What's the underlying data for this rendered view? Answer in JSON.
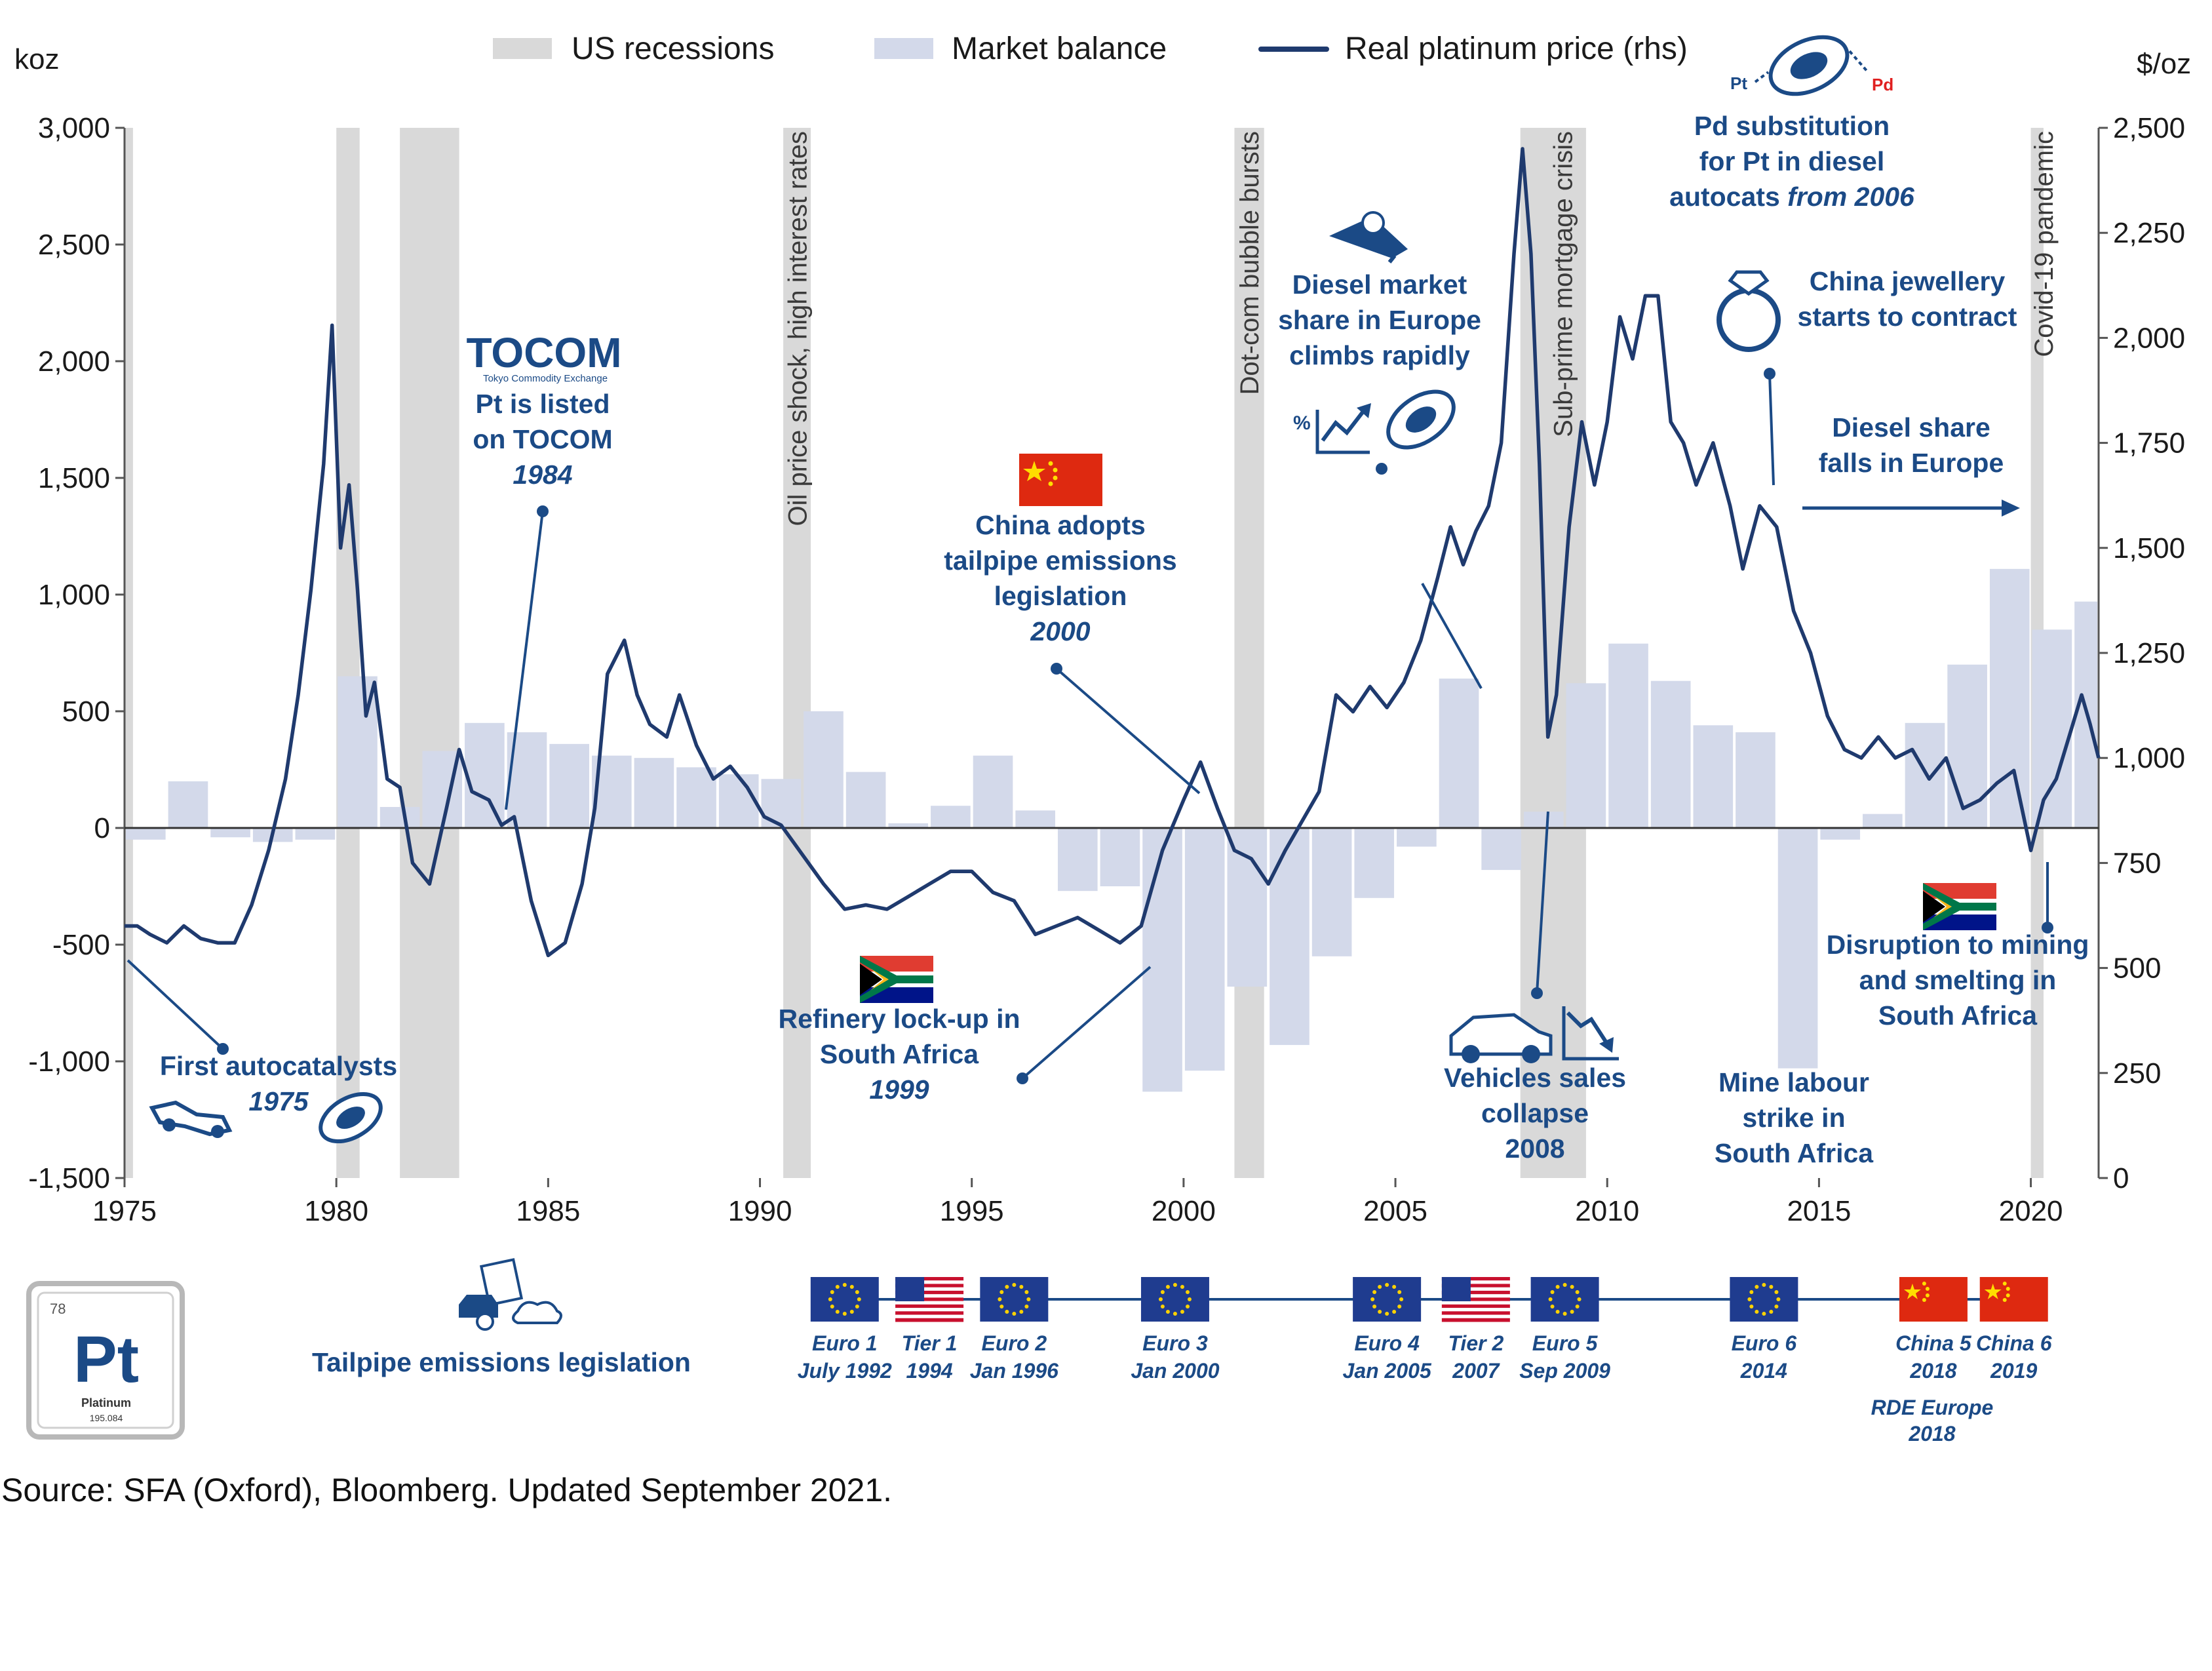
{
  "chart_data": {
    "type": "bar+line",
    "left_axis": {
      "unit": "koz",
      "ylim": [
        -1500,
        3000
      ],
      "ticks": [
        "3,000",
        "2,500",
        "2,000",
        "1,500",
        "1,000",
        "500",
        "0",
        "-500",
        "-1,000",
        "-1,500"
      ],
      "tick_values": [
        3000,
        2500,
        2000,
        1500,
        1000,
        500,
        0,
        -500,
        -1000,
        -1500
      ]
    },
    "right_axis": {
      "unit": "$/oz",
      "ylim": [
        0,
        2500
      ],
      "ticks": [
        "2,500",
        "2,250",
        "2,000",
        "1,750",
        "1,500",
        "1,250",
        "1,000",
        "750",
        "500",
        "250",
        "0"
      ],
      "tick_values": [
        2500,
        2250,
        2000,
        1750,
        1500,
        1250,
        1000,
        750,
        500,
        250,
        0
      ]
    },
    "x_axis": {
      "xlim": [
        1975,
        2021.6
      ],
      "ticks": [
        "1975",
        "1980",
        "1985",
        "1990",
        "1995",
        "2000",
        "2005",
        "2010",
        "2015",
        "2020"
      ],
      "tick_values": [
        1975,
        1980,
        1985,
        1990,
        1995,
        2000,
        2005,
        2010,
        2015,
        2020
      ]
    },
    "legend": [
      "US recessions",
      "Market balance",
      "Real platinum price (rhs)"
    ],
    "legend_position": "top",
    "colors": {
      "recession": "#d9d9d9",
      "balance": "#d3d9ea",
      "price": "#1f3a6e",
      "annotation": "#1b4a86"
    },
    "recessions": [
      [
        1975.0,
        1975.2
      ],
      [
        1980.0,
        1980.55
      ],
      [
        1981.5,
        1982.9
      ],
      [
        1990.55,
        1991.2
      ],
      [
        2001.2,
        2001.9
      ],
      [
        2007.95,
        2009.5
      ],
      [
        2020.0,
        2020.3
      ]
    ],
    "recession_labels": [
      {
        "text": "Oil price shock, high interest rates",
        "x": 1990.88
      },
      {
        "text": "Dot-com bubble bursts",
        "x": 2001.55
      },
      {
        "text": "Sub-prime mortgage crisis",
        "x": 2008.95
      },
      {
        "text": "Covid-19 pandemic",
        "x": 2020.3
      }
    ],
    "market_balance": {
      "years": [
        1975,
        1976,
        1977,
        1978,
        1979,
        1980,
        1981,
        1982,
        1983,
        1984,
        1985,
        1986,
        1987,
        1988,
        1989,
        1990,
        1991,
        1992,
        1993,
        1994,
        1995,
        1996,
        1997,
        1998,
        1999,
        2000,
        2001,
        2002,
        2003,
        2004,
        2005,
        2006,
        2007,
        2008,
        2009,
        2010,
        2011,
        2012,
        2013,
        2014,
        2015,
        2016,
        2017,
        2018,
        2019,
        2020,
        2021
      ],
      "values": [
        -50,
        200,
        -40,
        -60,
        -50,
        650,
        90,
        330,
        450,
        410,
        360,
        310,
        300,
        260,
        230,
        210,
        500,
        240,
        20,
        95,
        310,
        75,
        -270,
        -250,
        -1130,
        -1040,
        -680,
        -930,
        -550,
        -300,
        -80,
        640,
        -180,
        70,
        620,
        790,
        630,
        440,
        410,
        -1030,
        -50,
        60,
        450,
        700,
        1110,
        850,
        970
      ]
    },
    "real_price": {
      "x": [
        1975.0,
        1975.3,
        1975.6,
        1976.0,
        1976.4,
        1976.8,
        1977.2,
        1977.6,
        1978.0,
        1978.4,
        1978.8,
        1979.1,
        1979.4,
        1979.7,
        1979.9,
        1980.1,
        1980.3,
        1980.5,
        1980.7,
        1980.9,
        1981.2,
        1981.5,
        1981.8,
        1982.2,
        1982.6,
        1982.9,
        1983.2,
        1983.6,
        1983.9,
        1984.2,
        1984.6,
        1985.0,
        1985.4,
        1985.8,
        1986.1,
        1986.4,
        1986.8,
        1987.1,
        1987.4,
        1987.8,
        1988.1,
        1988.5,
        1988.9,
        1989.3,
        1989.7,
        1990.1,
        1990.5,
        1991.0,
        1991.5,
        1992.0,
        1992.5,
        1993.0,
        1993.5,
        1994.0,
        1994.5,
        1995.0,
        1995.5,
        1996.0,
        1996.5,
        1997.0,
        1997.5,
        1998.0,
        1998.5,
        1999.0,
        1999.5,
        2000.0,
        2000.4,
        2000.8,
        2001.2,
        2001.6,
        2002.0,
        2002.4,
        2002.8,
        2003.2,
        2003.6,
        2004.0,
        2004.4,
        2004.8,
        2005.2,
        2005.6,
        2006.0,
        2006.3,
        2006.6,
        2006.9,
        2007.2,
        2007.5,
        2007.8,
        2008.0,
        2008.2,
        2008.4,
        2008.6,
        2008.8,
        2009.1,
        2009.4,
        2009.7,
        2010.0,
        2010.3,
        2010.6,
        2010.9,
        2011.2,
        2011.5,
        2011.8,
        2012.1,
        2012.5,
        2012.9,
        2013.2,
        2013.6,
        2014.0,
        2014.4,
        2014.8,
        2015.2,
        2015.6,
        2016.0,
        2016.4,
        2016.8,
        2017.2,
        2017.6,
        2018.0,
        2018.4,
        2018.8,
        2019.2,
        2019.6,
        2020.0,
        2020.3,
        2020.6,
        2020.9,
        2021.2,
        2021.4,
        2021.6
      ],
      "y": [
        600,
        600,
        580,
        560,
        600,
        570,
        560,
        560,
        650,
        780,
        950,
        1150,
        1400,
        1700,
        2030,
        1500,
        1650,
        1400,
        1100,
        1180,
        950,
        930,
        750,
        700,
        880,
        1020,
        920,
        900,
        840,
        860,
        660,
        530,
        560,
        700,
        880,
        1200,
        1280,
        1150,
        1080,
        1050,
        1150,
        1030,
        950,
        980,
        930,
        860,
        840,
        770,
        700,
        640,
        650,
        640,
        670,
        700,
        730,
        730,
        680,
        660,
        580,
        600,
        620,
        590,
        560,
        600,
        780,
        900,
        990,
        880,
        780,
        760,
        700,
        780,
        850,
        920,
        1150,
        1110,
        1170,
        1120,
        1180,
        1280,
        1430,
        1550,
        1460,
        1540,
        1600,
        1750,
        2200,
        2450,
        2200,
        1700,
        1050,
        1150,
        1550,
        1800,
        1650,
        1800,
        2050,
        1950,
        2100,
        2100,
        1800,
        1750,
        1650,
        1750,
        1600,
        1450,
        1600,
        1550,
        1350,
        1250,
        1100,
        1020,
        1000,
        1050,
        1000,
        1020,
        950,
        1000,
        880,
        900,
        940,
        970,
        780,
        900,
        950,
        1050,
        1150,
        1080,
        1000
      ],
      "label": "Real platinum price (rhs)"
    },
    "annotations": [
      {
        "lines": [
          "First autocatalysts"
        ],
        "italic": "1975"
      },
      {
        "lines": [
          "Pt is listed",
          "on TOCOM"
        ],
        "italic": "1984"
      },
      {
        "lines": [
          "China adopts",
          "tailpipe emissions",
          "legislation"
        ],
        "italic": "2000"
      },
      {
        "lines": [
          "Refinery lock-up in",
          "South Africa"
        ],
        "italic": "1999"
      },
      {
        "lines": [
          "Diesel market",
          "share in Europe",
          "climbs rapidly"
        ]
      },
      {
        "lines": [
          "Vehicles sales",
          "collapse",
          "2008"
        ]
      },
      {
        "lines": [
          "Pd substitution",
          "for Pt in diesel"
        ],
        "mixed": [
          "autocats ",
          "from 2006"
        ]
      },
      {
        "lines": [
          "China jewellery",
          "starts to contract"
        ]
      },
      {
        "lines": [
          "Diesel share",
          "falls in Europe"
        ]
      },
      {
        "lines": [
          "Mine labour",
          "strike in",
          "South Africa"
        ]
      },
      {
        "lines": [
          "Disruption to mining",
          "and smelting in",
          "South Africa"
        ]
      }
    ],
    "emissions_timeline": {
      "title": "Tailpipe emissions legislation",
      "events": [
        {
          "label": "Euro 1",
          "date": "July 1992",
          "flag": "eu",
          "x": 1992.0
        },
        {
          "label": "Tier 1",
          "date": "1994",
          "flag": "us",
          "x": 1994.0
        },
        {
          "label": "Euro 2",
          "date": "Jan 1996",
          "flag": "eu",
          "x": 1996.0
        },
        {
          "label": "Euro 3",
          "date": "Jan 2000",
          "flag": "eu",
          "x": 1999.8
        },
        {
          "label": "Euro 4",
          "date": "Jan 2005",
          "flag": "eu",
          "x": 2004.8
        },
        {
          "label": "Tier 2",
          "date": "2007",
          "flag": "us",
          "x": 2006.9
        },
        {
          "label": "Euro 5",
          "date": "Sep 2009",
          "flag": "eu",
          "x": 2009.0
        },
        {
          "label": "Euro 6",
          "date": "2014",
          "flag": "eu",
          "x": 2013.7
        },
        {
          "label": "China 5",
          "date": "2018",
          "flag": "cn",
          "x": 2017.7
        },
        {
          "label": "China 6",
          "date": "2019",
          "flag": "cn",
          "x": 2019.6
        }
      ],
      "extra": {
        "label": "RDE Europe",
        "date": "2018"
      }
    },
    "tocom_logo": {
      "name": "TOCOM",
      "sub": "Tokyo Commodity Exchange"
    },
    "element_tile": {
      "number": "78",
      "symbol": "Pt",
      "name": "Platinum",
      "mass": "195.084"
    },
    "pd_pt_labels": {
      "pt": "Pt",
      "pd": "Pd"
    },
    "percent_sign": "%"
  },
  "source": "Source: SFA (Oxford), Bloomberg. Updated September 2021."
}
